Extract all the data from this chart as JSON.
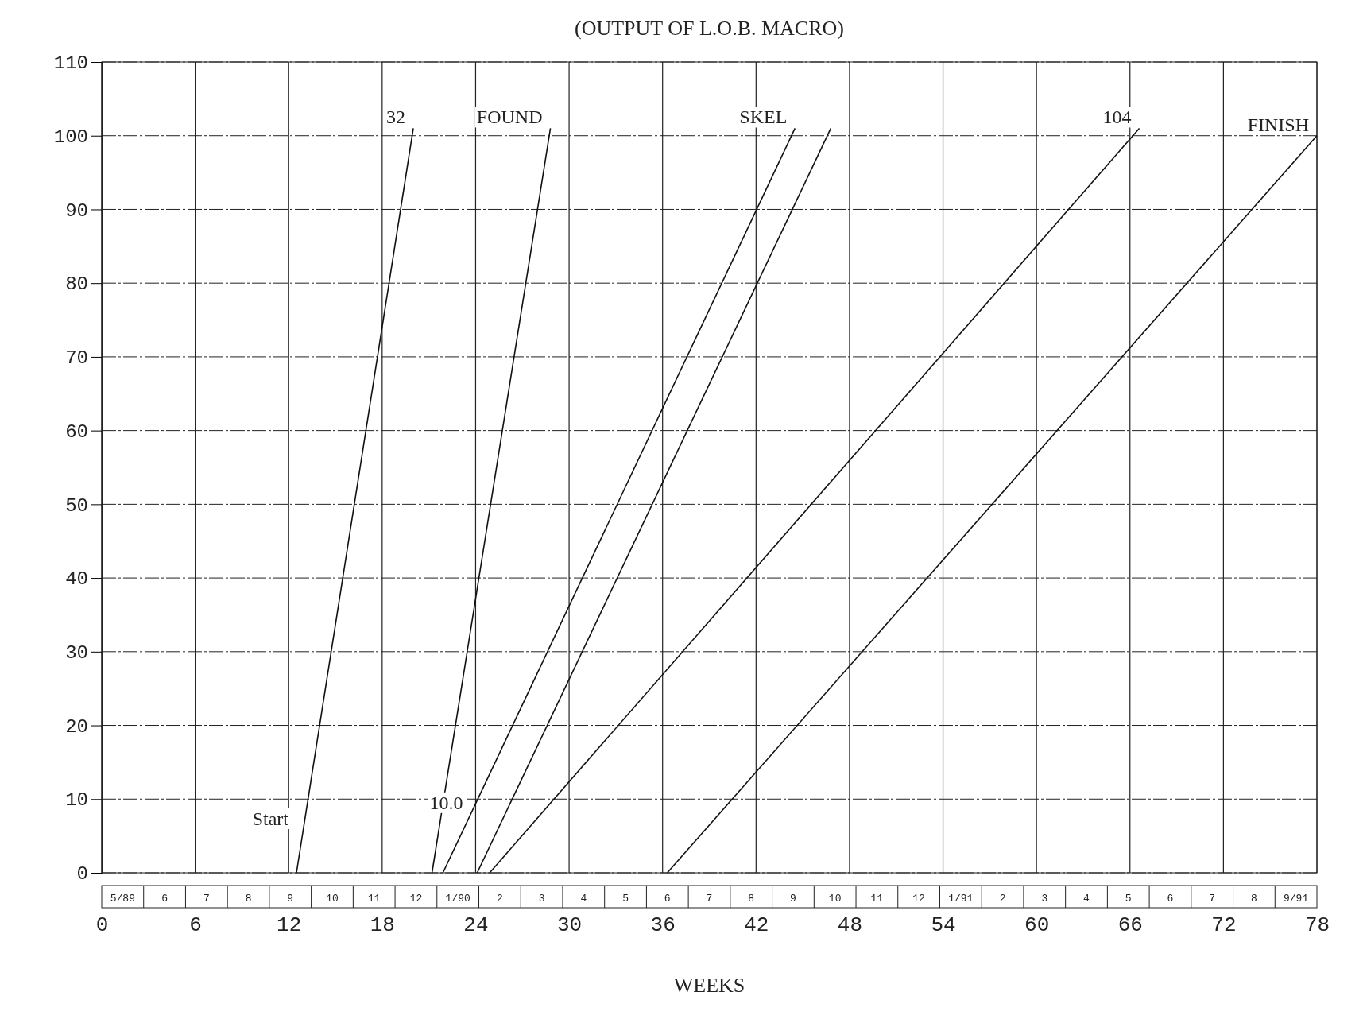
{
  "chart_data": [
    {
      "type": "line",
      "title": "(OUTPUT OF L.O.B. MACRO)",
      "xlabel": "WEEKS",
      "xlim": [
        0,
        78
      ],
      "xticks": [
        0,
        6,
        12,
        18,
        24,
        30,
        36,
        42,
        48,
        54,
        60,
        66,
        72,
        78
      ],
      "ylim": [
        0,
        110
      ],
      "yticks": [
        0,
        10,
        20,
        30,
        40,
        50,
        60,
        70,
        80,
        90,
        100,
        110
      ],
      "grid": true,
      "marker": "none",
      "line_style": "solid",
      "series": [
        {
          "color": "#111111",
          "x": [
            12.5,
            20
          ],
          "values": [
            0,
            101
          ]
        },
        {
          "color": "#111111",
          "x": [
            21.2,
            28.8
          ],
          "values": [
            0,
            101
          ]
        },
        {
          "color": "#111111",
          "x": [
            21.9,
            44.5
          ],
          "values": [
            0,
            101
          ]
        },
        {
          "color": "#111111",
          "x": [
            24.1,
            46.8
          ],
          "values": [
            0,
            101
          ]
        },
        {
          "color": "#111111",
          "x": [
            24.9,
            66.6
          ],
          "values": [
            0,
            101
          ]
        },
        {
          "color": "#111111",
          "x": [
            36.3,
            78
          ],
          "values": [
            0,
            100
          ]
        }
      ],
      "annotations": [
        {
          "text": "32",
          "x": 20,
          "y": 101
        },
        {
          "text": "FOUND",
          "x": 28.8,
          "y": 101
        },
        {
          "text": "SKEL",
          "x": 44.5,
          "y": 101
        },
        {
          "text": "104",
          "x": 66.6,
          "y": 101
        },
        {
          "text": "FINISH",
          "x": 78,
          "y": 100
        },
        {
          "text": "10.0",
          "x": 23.7,
          "y": 8
        },
        {
          "text": "Start",
          "x": 12.5,
          "y": 0
        },
        "5/89",
        "6",
        "7",
        "8",
        "9",
        "10",
        "11",
        "12",
        "1/90",
        "2",
        "3",
        "4",
        "5",
        "6",
        "7",
        "8",
        "9",
        "10",
        "11",
        "12",
        "1/91",
        "2",
        "3",
        "4",
        "5",
        "6",
        "7",
        "8",
        "9/91"
      ]
    }
  ]
}
